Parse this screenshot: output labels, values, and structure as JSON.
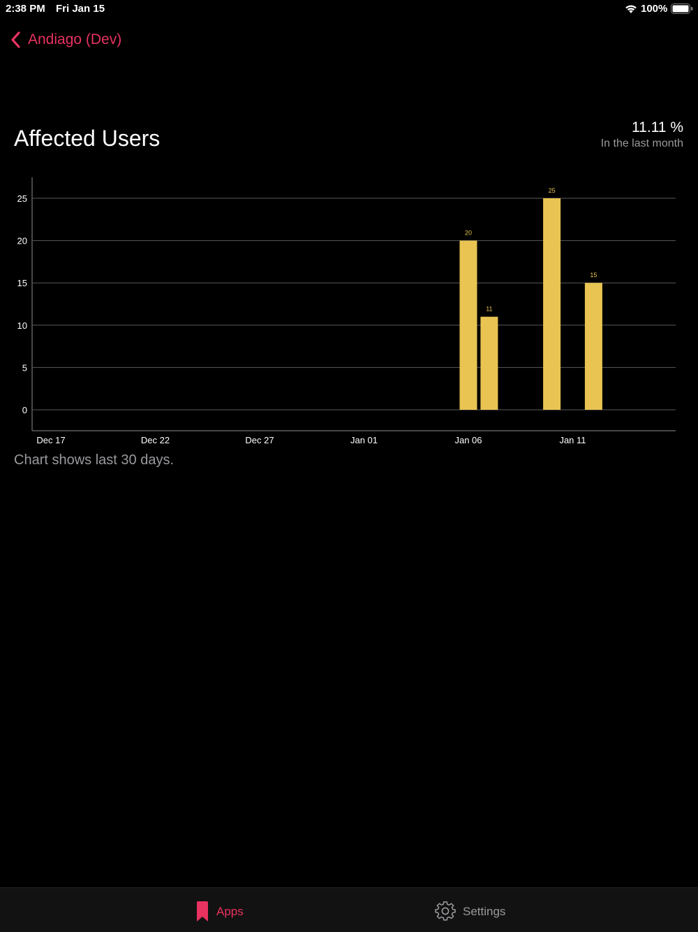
{
  "status_bar": {
    "time": "2:38 PM",
    "date": "Fri Jan 15",
    "battery": "100%"
  },
  "nav": {
    "back_label": "Andiago (Dev)"
  },
  "header": {
    "title": "Affected Users",
    "stat_value": "11.11 %",
    "stat_caption": "In the last month"
  },
  "chart_note": "Chart shows last 30 days.",
  "tabs": [
    {
      "label": "Apps",
      "icon": "bookmark-icon",
      "active": true
    },
    {
      "label": "Settings",
      "icon": "gear-icon",
      "active": false
    }
  ],
  "colors": {
    "accent": "#e8325f",
    "bar": "#e9c452",
    "background": "#000000",
    "secondary_text": "#9a9a9e"
  },
  "chart_data": {
    "type": "bar",
    "x_tick_labels": [
      "Dec 17",
      "Dec 22",
      "Dec 27",
      "Jan 01",
      "Jan 06",
      "Jan 11"
    ],
    "x_range": [
      "2020-12-17",
      "2021-01-15"
    ],
    "x": [
      "2021-01-06",
      "2021-01-07",
      "2021-01-10",
      "2021-01-12"
    ],
    "values": [
      20,
      11,
      25,
      15
    ],
    "data_labels": [
      "20",
      "11",
      "25",
      "15"
    ],
    "y_ticks": [
      0,
      5,
      10,
      15,
      20,
      25
    ],
    "ylim": [
      0,
      25
    ],
    "grid": true,
    "legend": "none"
  }
}
